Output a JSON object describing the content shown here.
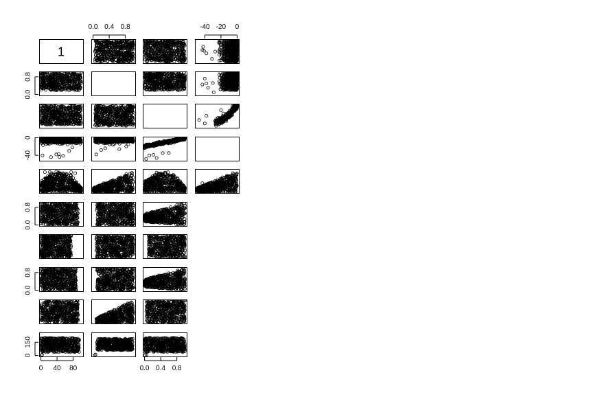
{
  "chart_data": {
    "type": "scatter",
    "title": "",
    "subtitle": "",
    "description_of_layout": "",
    "grid": false,
    "legend": "none",
    "diagonal_label": "1",
    "point_color": "#000000",
    "background": "#ffffff",
    "panel_columns": [
      {
        "range": [
          0,
          100
        ],
        "ticks": [
          0,
          40,
          80
        ],
        "tick_labels": [
          "0",
          "40",
          "80"
        ]
      },
      {
        "range": [
          0,
          1
        ],
        "ticks": [
          0.0,
          0.4,
          0.8
        ],
        "tick_labels": [
          "0.0",
          "0.4",
          "0.8"
        ]
      },
      {
        "range": [
          0,
          1
        ],
        "ticks": [
          0.0,
          0.4,
          0.8
        ],
        "tick_labels": [
          "0.0",
          "0.4",
          "0.8"
        ]
      },
      {
        "range": [
          -50,
          0
        ],
        "ticks": [
          -40,
          -20,
          0
        ],
        "tick_labels": [
          "-40",
          "-20",
          "0"
        ]
      }
    ],
    "panel_rows": [
      {
        "range": [
          0,
          100
        ],
        "ticks": [],
        "tick_labels": []
      },
      {
        "range": [
          0,
          1
        ],
        "ticks": [
          0.0,
          0.8
        ],
        "tick_labels": [
          "0.0",
          "0.8"
        ]
      },
      {
        "range": [
          0,
          1
        ],
        "ticks": [],
        "tick_labels": []
      },
      {
        "range": [
          -50,
          0
        ],
        "ticks": [
          -40,
          0
        ],
        "tick_labels": [
          "-40",
          "0"
        ]
      },
      {
        "range": [
          0,
          1
        ],
        "ticks": [],
        "tick_labels": []
      },
      {
        "range": [
          0,
          1
        ],
        "ticks": [
          0.0,
          0.8
        ],
        "tick_labels": [
          "0.0",
          "0.8"
        ]
      },
      {
        "range": [
          0,
          1
        ],
        "ticks": [],
        "tick_labels": []
      },
      {
        "range": [
          0,
          1
        ],
        "ticks": [
          0.0,
          0.8
        ],
        "tick_labels": [
          "0.0",
          "0.8"
        ]
      },
      {
        "range": [
          0,
          1
        ],
        "ticks": [],
        "tick_labels": []
      },
      {
        "range": [
          0,
          250
        ],
        "ticks": [
          0,
          150
        ],
        "tick_labels": [
          "0",
          "150"
        ]
      }
    ],
    "top_axis_columns": [
      1,
      3
    ],
    "bottom_axis_columns": [
      0,
      2
    ],
    "left_axis_rows": [
      1,
      3,
      5,
      7,
      9
    ],
    "panels": [
      {
        "row": 0,
        "col": 0,
        "kind": "diag"
      },
      {
        "row": 0,
        "col": 1,
        "kind": "scatter",
        "shape": "block",
        "x": [
          0.05,
          1.0
        ],
        "y": [
          2,
          100
        ],
        "spread": 8
      },
      {
        "row": 0,
        "col": 2,
        "kind": "scatter",
        "shape": "block",
        "x": [
          0.0,
          1.0
        ],
        "y": [
          2,
          100
        ],
        "spread": 8
      },
      {
        "row": 0,
        "col": 3,
        "kind": "scatter",
        "shape": "rightblock",
        "x": [
          -50,
          0
        ],
        "y": [
          2,
          100
        ],
        "spread": 6,
        "outliers": [
          [
            -43,
            55
          ],
          [
            -41,
            52
          ],
          [
            -42,
            70
          ],
          [
            -38,
            40
          ],
          [
            -31,
            15
          ],
          [
            -27,
            48
          ],
          [
            -20,
            8
          ]
        ]
      },
      {
        "row": 1,
        "col": 0,
        "kind": "scatter",
        "shape": "block",
        "x": [
          0,
          100
        ],
        "y": [
          0.2,
          1.0
        ],
        "spread": 0.1
      },
      {
        "row": 1,
        "col": 1,
        "kind": "empty"
      },
      {
        "row": 1,
        "col": 2,
        "kind": "scatter",
        "shape": "block",
        "x": [
          0.0,
          1.0
        ],
        "y": [
          0.2,
          1.0
        ],
        "spread": 0.08
      },
      {
        "row": 1,
        "col": 3,
        "kind": "scatter",
        "shape": "rightblock",
        "x": [
          -50,
          0
        ],
        "y": [
          0.2,
          1.0
        ],
        "spread": 0.06,
        "outliers": [
          [
            -43,
            0.45
          ],
          [
            -40,
            0.72
          ],
          [
            -38,
            0.5
          ],
          [
            -36,
            0.3
          ],
          [
            -30,
            0.52
          ],
          [
            -29,
            0.1
          ]
        ]
      },
      {
        "row": 2,
        "col": 0,
        "kind": "scatter",
        "shape": "block",
        "x": [
          0,
          100
        ],
        "y": [
          0.1,
          0.95
        ],
        "spread": 0.08
      },
      {
        "row": 2,
        "col": 1,
        "kind": "scatter",
        "shape": "block",
        "x": [
          0.05,
          1.0
        ],
        "y": [
          0.05,
          0.95
        ],
        "spread": 0.08
      },
      {
        "row": 2,
        "col": 2,
        "kind": "empty"
      },
      {
        "row": 2,
        "col": 3,
        "kind": "scatter",
        "shape": "curve",
        "x": [
          -50,
          0
        ],
        "y": [
          0.1,
          1.0
        ],
        "spread": 0.05,
        "outliers": [
          [
            -47,
            0.3
          ],
          [
            -40,
            0.15
          ],
          [
            -38,
            0.5
          ],
          [
            -20,
            0.75
          ],
          [
            -17,
            0.6
          ]
        ]
      },
      {
        "row": 3,
        "col": 0,
        "kind": "scatter",
        "shape": "topband",
        "x": [
          0,
          100
        ],
        "y": [
          -20,
          -2
        ],
        "spread": 3,
        "outliers": [
          [
            4,
            -40
          ],
          [
            25,
            -44
          ],
          [
            38,
            -38
          ],
          [
            44,
            -37
          ],
          [
            46,
            -44
          ],
          [
            55,
            -41
          ],
          [
            70,
            -30
          ],
          [
            78,
            -22
          ]
        ]
      },
      {
        "row": 3,
        "col": 1,
        "kind": "scatter",
        "shape": "topband",
        "x": [
          0.05,
          1.0
        ],
        "y": [
          -18,
          -2
        ],
        "spread": 3,
        "outliers": [
          [
            0.08,
            -38
          ],
          [
            0.2,
            -28
          ],
          [
            0.3,
            -24
          ],
          [
            0.65,
            -26
          ],
          [
            0.82,
            -20
          ]
        ]
      },
      {
        "row": 3,
        "col": 2,
        "kind": "scatter",
        "shape": "risingband",
        "x": [
          0.0,
          1.0
        ],
        "y": [
          -30,
          -2
        ],
        "spread": 4,
        "outliers": [
          [
            0.04,
            -48
          ],
          [
            0.12,
            -40
          ],
          [
            0.22,
            -39
          ],
          [
            0.3,
            -46
          ],
          [
            0.45,
            -35
          ],
          [
            0.6,
            -35
          ]
        ]
      },
      {
        "row": 3,
        "col": 3,
        "kind": "empty"
      },
      {
        "row": 4,
        "col": 0,
        "kind": "scatter",
        "shape": "mound",
        "x": [
          0,
          100
        ],
        "y": [
          0.0,
          0.95
        ],
        "spread": 0.05,
        "outliers": [
          [
            10,
            0.9
          ],
          [
            22,
            0.9
          ],
          [
            28,
            0.85
          ],
          [
            75,
            0.9
          ],
          [
            85,
            0.85
          ],
          [
            90,
            0.1
          ],
          [
            96,
            0.05
          ]
        ]
      },
      {
        "row": 4,
        "col": 1,
        "kind": "scatter",
        "shape": "ramp",
        "x": [
          0.0,
          1.0
        ],
        "y": [
          0.0,
          0.95
        ],
        "spread": 0.05
      },
      {
        "row": 4,
        "col": 2,
        "kind": "scatter",
        "shape": "mound",
        "x": [
          0.0,
          1.0
        ],
        "y": [
          0.0,
          0.95
        ],
        "spread": 0.05
      },
      {
        "row": 4,
        "col": 3,
        "kind": "scatter",
        "shape": "ramp",
        "x": [
          -50,
          0
        ],
        "y": [
          0.0,
          0.95
        ],
        "spread": 0.05,
        "outliers": [
          [
            -43,
            0.4
          ],
          [
            -38,
            0.05
          ],
          [
            -30,
            0.05
          ]
        ]
      },
      {
        "row": 5,
        "col": 0,
        "kind": "scatter",
        "shape": "block",
        "x": [
          0,
          92
        ],
        "y": [
          0.0,
          1.0
        ],
        "spread": 0.02
      },
      {
        "row": 5,
        "col": 1,
        "kind": "scatter",
        "shape": "block",
        "x": [
          0.1,
          1.0
        ],
        "y": [
          0.0,
          1.0
        ],
        "spread": 0.02
      },
      {
        "row": 5,
        "col": 2,
        "kind": "scatter",
        "shape": "triangle",
        "x": [
          0.0,
          1.0
        ],
        "y": [
          0.0,
          1.0
        ],
        "spread": 0.04
      },
      {
        "row": 6,
        "col": 0,
        "kind": "scatter",
        "shape": "block",
        "x": [
          0,
          75
        ],
        "y": [
          0.0,
          1.0
        ],
        "spread": 0.02
      },
      {
        "row": 6,
        "col": 1,
        "kind": "scatter",
        "shape": "block",
        "x": [
          0.08,
          1.0
        ],
        "y": [
          0.0,
          1.0
        ],
        "spread": 0.02
      },
      {
        "row": 6,
        "col": 2,
        "kind": "scatter",
        "shape": "block",
        "x": [
          0.1,
          1.0
        ],
        "y": [
          0.0,
          1.0
        ],
        "spread": 0.02
      },
      {
        "row": 7,
        "col": 0,
        "kind": "scatter",
        "shape": "block",
        "x": [
          0,
          88
        ],
        "y": [
          0.0,
          1.0
        ],
        "spread": 0.03
      },
      {
        "row": 7,
        "col": 1,
        "kind": "scatter",
        "shape": "block",
        "x": [
          0.1,
          1.0
        ],
        "y": [
          0.0,
          1.0
        ],
        "spread": 0.03
      },
      {
        "row": 7,
        "col": 2,
        "kind": "scatter",
        "shape": "triangle",
        "x": [
          0.0,
          1.0
        ],
        "y": [
          0.0,
          1.0
        ],
        "spread": 0.04
      },
      {
        "row": 8,
        "col": 0,
        "kind": "scatter",
        "shape": "block",
        "x": [
          0,
          92
        ],
        "y": [
          0.0,
          1.0
        ],
        "spread": 0.02
      },
      {
        "row": 8,
        "col": 1,
        "kind": "scatter",
        "shape": "ramp",
        "x": [
          0.08,
          1.0
        ],
        "y": [
          0.0,
          1.0
        ],
        "spread": 0.04
      },
      {
        "row": 8,
        "col": 2,
        "kind": "scatter",
        "shape": "block",
        "x": [
          0.05,
          1.0
        ],
        "y": [
          0.0,
          1.0
        ],
        "spread": 0.02
      },
      {
        "row": 9,
        "col": 0,
        "kind": "scatter",
        "shape": "block",
        "x": [
          0,
          95
        ],
        "y": [
          40,
          200
        ],
        "spread": 8,
        "outliers": [
          [
            2,
            5
          ],
          [
            3,
            10
          ]
        ]
      },
      {
        "row": 9,
        "col": 1,
        "kind": "scatter",
        "shape": "block",
        "x": [
          0.1,
          0.98
        ],
        "y": [
          60,
          190
        ],
        "spread": 8,
        "outliers": [
          [
            0.04,
            5
          ],
          [
            0.06,
            10
          ]
        ]
      },
      {
        "row": 9,
        "col": 2,
        "kind": "scatter",
        "shape": "block",
        "x": [
          0.0,
          1.0
        ],
        "y": [
          40,
          200
        ],
        "spread": 8,
        "outliers": [
          [
            0.02,
            5
          ],
          [
            0.05,
            8
          ]
        ]
      }
    ]
  }
}
